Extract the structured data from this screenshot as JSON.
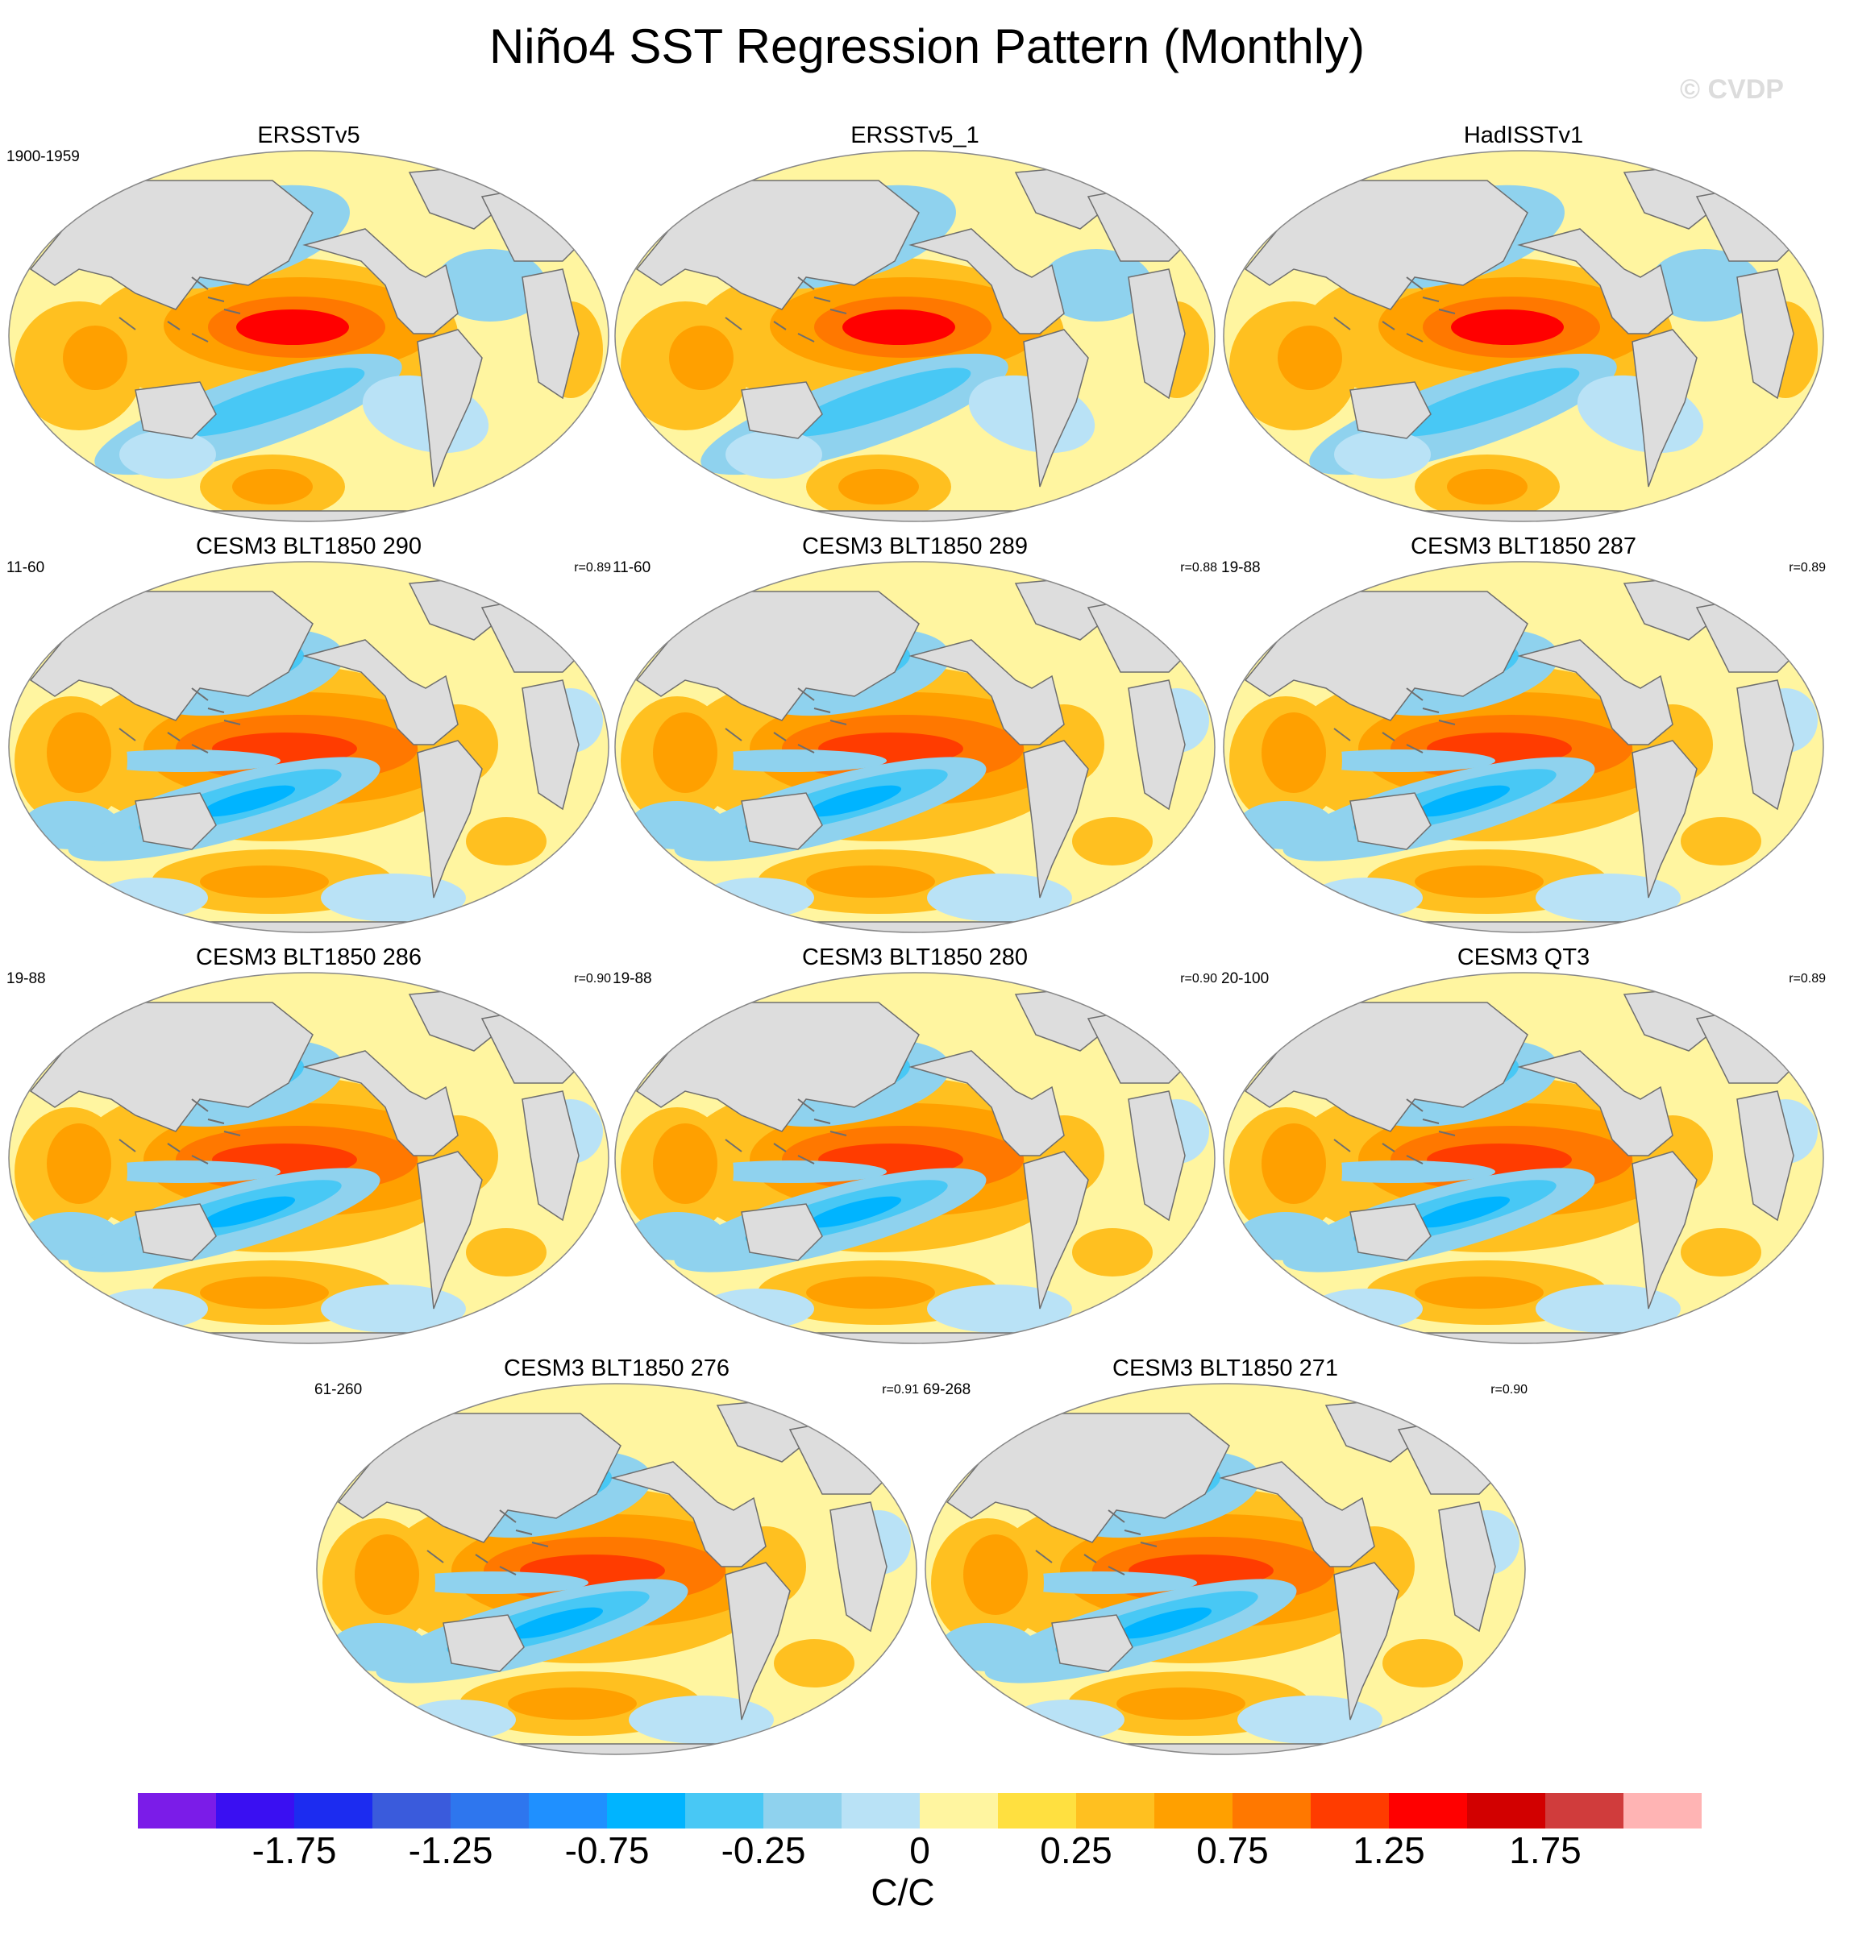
{
  "title": "Niño4 SST Regression Pattern (Monthly)",
  "watermark": "© CVDP",
  "units": "C/C",
  "panels": [
    {
      "name": "ERSSTv5",
      "period": "1900-1959",
      "corr": ""
    },
    {
      "name": "ERSSTv5_1",
      "period": "",
      "corr": ""
    },
    {
      "name": "HadISSTv1",
      "period": "",
      "corr": ""
    },
    {
      "name": "CESM3 BLT1850 290",
      "period": "11-60",
      "corr": "r=0.89"
    },
    {
      "name": "CESM3 BLT1850 289",
      "period": "11-60",
      "corr": "r=0.88"
    },
    {
      "name": "CESM3 BLT1850 287",
      "period": "19-88",
      "corr": "r=0.89"
    },
    {
      "name": "CESM3 BLT1850 286",
      "period": "19-88",
      "corr": "r=0.90"
    },
    {
      "name": "CESM3 BLT1850 280",
      "period": "19-88",
      "corr": "r=0.90"
    },
    {
      "name": "CESM3 QT3",
      "period": "20-100",
      "corr": "r=0.89"
    },
    {
      "name": "CESM3 BLT1850 276",
      "period": "61-260",
      "corr": "r=0.91"
    },
    {
      "name": "CESM3 BLT1850 271",
      "period": "69-268",
      "corr": "r=0.90"
    }
  ],
  "colorbar": {
    "colors": [
      "#7b1ce8",
      "#3a0ff2",
      "#1c2cf0",
      "#3a5bdc",
      "#2e76ee",
      "#1f90ff",
      "#00b4ff",
      "#48c8f5",
      "#8fd2ee",
      "#b9e2f6",
      "#fff5a0",
      "#ffe040",
      "#ffc020",
      "#ffa000",
      "#ff7800",
      "#ff3c00",
      "#ff0000",
      "#d20000",
      "#d03c3c",
      "#ffb4b4"
    ],
    "tick_labels": [
      "-1.75",
      "-1.25",
      "-0.75",
      "-0.25",
      "0",
      "0.25",
      "0.75",
      "1.25",
      "1.75"
    ],
    "tick_boundary_index": [
      2,
      4,
      6,
      8,
      10,
      12,
      14,
      16,
      18
    ]
  },
  "palette": {
    "land": "#dddddd",
    "coast": "#6e6e6e",
    "background_ocean": "#fff5a0"
  }
}
